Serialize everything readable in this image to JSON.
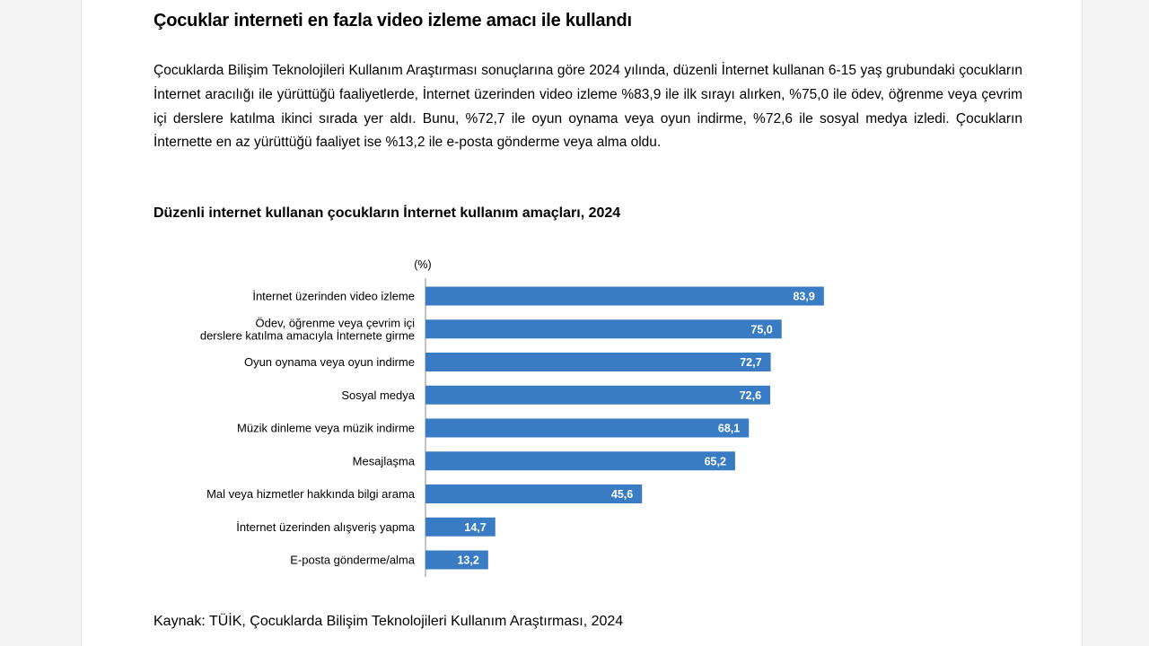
{
  "article": {
    "headline": "Çocuklar interneti en fazla video izleme amacı ile kullandı",
    "body": "Çocuklarda Bilişim Teknolojileri Kullanım Araştırması sonuçlarına göre 2024 yılında, düzenli İnternet kullanan 6-15 yaş grubundaki çocukların İnternet aracılığı ile yürüttüğü faaliyetlerde, İnternet üzerinden video izleme %83,9 ile ilk sırayı alırken, %75,0 ile ödev, öğrenme veya çevrim içi derslere katılma ikinci sırada yer aldı. Bunu, %72,7 ile oyun oynama veya oyun indirme, %72,6 ile sosyal medya izledi. Çocukların İnternette en az yürüttüğü faaliyet ise %13,2 ile e-posta gönderme veya alma oldu.",
    "source": "Kaynak: TÜİK, Çocuklarda Bilişim Teknolojileri Kullanım Araştırması, 2024"
  },
  "chart_data": {
    "type": "bar",
    "orientation": "horizontal",
    "title": "Düzenli internet kullanan çocukların İnternet kullanım amaçları, 2024",
    "unit_label": "(%)",
    "categories": [
      [
        "İnternet üzerinden video izleme"
      ],
      [
        "Ödev, öğrenme veya çevrim içi",
        "derslere katılma amacıyla İnternete girme"
      ],
      [
        "Oyun oynama veya oyun indirme"
      ],
      [
        "Sosyal medya"
      ],
      [
        "Müzik dinleme veya müzik indirme"
      ],
      [
        "Mesajlaşma"
      ],
      [
        "Mal veya hizmetler hakkında bilgi arama"
      ],
      [
        "İnternet üzerinden alışveriş yapma"
      ],
      [
        "E-posta gönderme/alma"
      ]
    ],
    "values": [
      83.9,
      75.0,
      72.7,
      72.6,
      68.1,
      65.2,
      45.6,
      14.7,
      13.2
    ],
    "value_labels": [
      "83,9",
      "75,0",
      "72,7",
      "72,6",
      "68,1",
      "65,2",
      "45,6",
      "14,7",
      "13,2"
    ],
    "xlim": [
      0,
      100
    ],
    "grid": false,
    "bar_color": "#3a7cc4",
    "label_color": "#ffffff"
  }
}
